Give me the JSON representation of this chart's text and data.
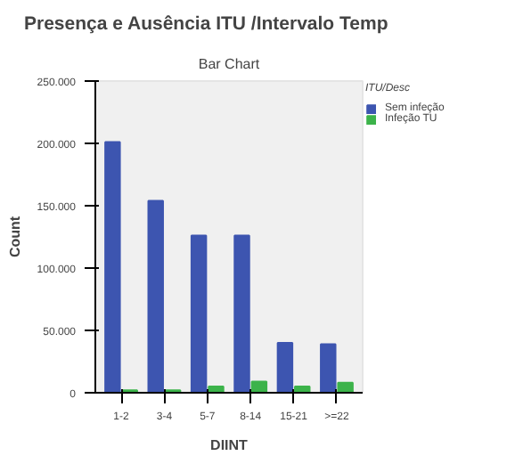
{
  "chart_data": {
    "type": "bar",
    "title": "Presença e Ausência ITU /Intervalo Temp",
    "subtitle": "Bar Chart",
    "xlabel": "DIINT",
    "ylabel": "Count",
    "categories": [
      "1-2",
      "3-4",
      "5-7",
      "8-14",
      "15-21",
      ">=22"
    ],
    "series": [
      {
        "name": "Sem infeção",
        "color": "#3d55b0",
        "values": [
          201000,
          154000,
          126000,
          126000,
          40000,
          39000
        ]
      },
      {
        "name": "Infeção TU",
        "color": "#3cb34a",
        "values": [
          2000,
          2000,
          5000,
          9000,
          5000,
          8000
        ]
      }
    ],
    "legend_title": "ITU/Desc",
    "legend": "top right",
    "ylim": [
      0,
      250000
    ],
    "yticks": [
      0,
      {
        "value": 50000,
        "label": "50.000"
      },
      {
        "value": 100000,
        "label": "100.000"
      },
      {
        "value": 150000,
        "label": "150.000"
      },
      {
        "value": 200000,
        "label": "200.000"
      },
      {
        "value": 250000,
        "label": "250.000"
      }
    ],
    "grid": false
  }
}
